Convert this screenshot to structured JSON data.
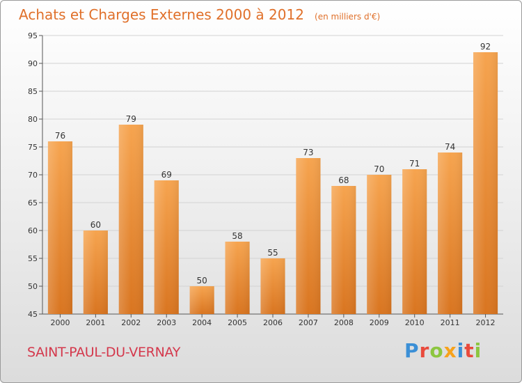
{
  "header": {
    "title": "Achats et Charges Externes 2000 à 2012",
    "subtitle": "(en milliers d'€)"
  },
  "footer": {
    "location": "SAINT-PAUL-DU-VERNAY",
    "brand": "Proxiti"
  },
  "colors": {
    "accent": "#e0702a",
    "location": "#d4384c",
    "bar_light": "#f6a44f",
    "bar_dark": "#d97520",
    "logo_letters": [
      "#3b8fd6",
      "#e94a3c",
      "#8cc63f",
      "#f7a21b",
      "#3b8fd6",
      "#e94a3c",
      "#8cc63f"
    ]
  },
  "chart_data": {
    "type": "bar",
    "categories": [
      "2000",
      "2001",
      "2002",
      "2003",
      "2004",
      "2005",
      "2006",
      "2007",
      "2008",
      "2009",
      "2010",
      "2011",
      "2012"
    ],
    "values": [
      76,
      60,
      79,
      69,
      50,
      58,
      55,
      73,
      68,
      70,
      71,
      74,
      92
    ],
    "data_labels": [
      "76",
      "60",
      "79",
      "69",
      "50",
      "58",
      "55",
      "73",
      "68",
      "70",
      "71",
      "74",
      "92"
    ],
    "title": "Achats et Charges Externes 2000 à 2012",
    "subtitle": "(en milliers d'€)",
    "xlabel": "",
    "ylabel": "",
    "ylim": [
      45,
      95
    ],
    "yticks": [
      45,
      50,
      55,
      60,
      65,
      70,
      75,
      80,
      85,
      90,
      95
    ],
    "ytick_labels": [
      "45",
      "50",
      "55",
      "60",
      "65",
      "70",
      "75",
      "80",
      "85",
      "90",
      "95"
    ],
    "grid": true,
    "legend": "none"
  }
}
